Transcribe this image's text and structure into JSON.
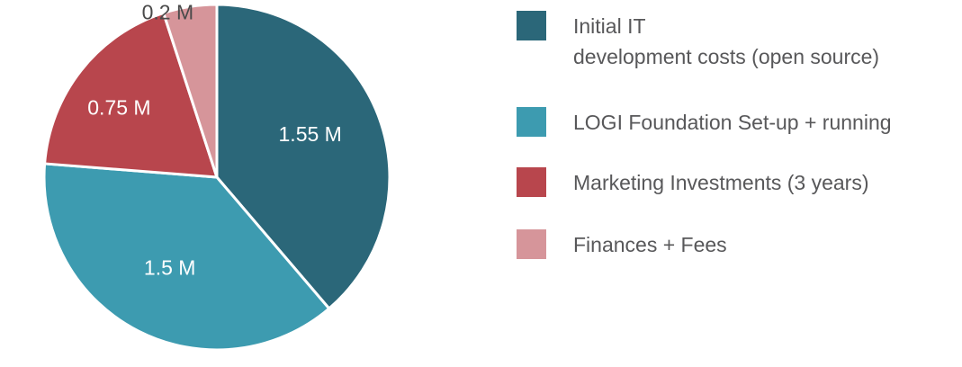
{
  "chart_data": {
    "type": "pie",
    "unit": "M",
    "slices": [
      {
        "label": "Initial IT\ndevelopment costs (open source)",
        "value": 1.55,
        "value_label": "1.55 M",
        "color": "#2b6779"
      },
      {
        "label": "LOGI Foundation Set-up + running",
        "value": 1.5,
        "value_label": "1.5 M",
        "color": "#3d9bb0"
      },
      {
        "label": "Marketing Investments (3 years)",
        "value": 0.75,
        "value_label": "0.75 M",
        "color": "#b8464d"
      },
      {
        "label": "Finances + Fees",
        "value": 0.2,
        "value_label": "0.2 M",
        "color": "#d6959a"
      }
    ],
    "legend_position": "right",
    "start_angle_deg": 0,
    "direction": "clockwise"
  },
  "colors": {
    "label_light": "#ffffff",
    "label_dark": "#4a4a4a",
    "legend_text": "#58585a"
  }
}
